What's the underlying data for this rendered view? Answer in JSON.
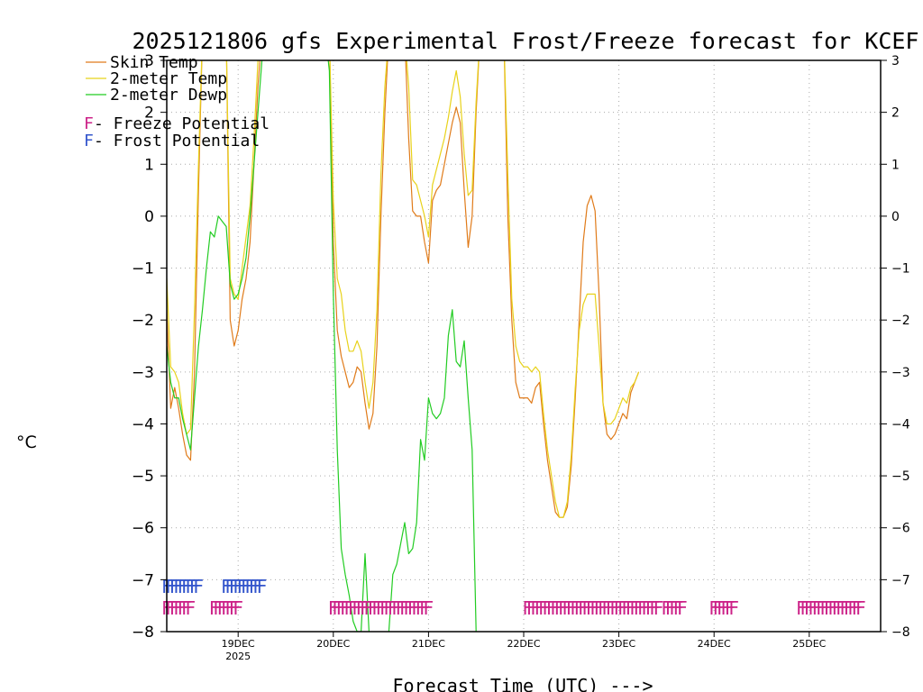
{
  "chart_data": {
    "type": "line",
    "title": "2025121806 gfs Experimental Frost/Freeze forecast for KCEF",
    "xlabel": "Forecast Time (UTC) --->",
    "ylabel": "°C",
    "ylim": [
      -8,
      3
    ],
    "yticks": [
      3,
      2,
      1,
      0,
      -1,
      -2,
      -3,
      -4,
      -5,
      -6,
      -7,
      -8
    ],
    "ytick_labels": [
      "3",
      "2",
      "1",
      "0",
      "−1",
      "−2",
      "−3",
      "−4",
      "−5",
      "−6",
      "−7",
      "−8"
    ],
    "xlim": [
      0,
      180
    ],
    "xunit": "forecast hours from 2025-12-18 06Z",
    "x_ticks": [
      {
        "hour": 18,
        "label": "19DEC",
        "sublabel": "2025"
      },
      {
        "hour": 42,
        "label": "20DEC",
        "sublabel": ""
      },
      {
        "hour": 66,
        "label": "21DEC",
        "sublabel": ""
      },
      {
        "hour": 90,
        "label": "22DEC",
        "sublabel": ""
      },
      {
        "hour": 114,
        "label": "23DEC",
        "sublabel": ""
      },
      {
        "hour": 138,
        "label": "24DEC",
        "sublabel": ""
      },
      {
        "hour": 162,
        "label": "25DEC",
        "sublabel": ""
      }
    ],
    "grid": true,
    "legend_position": "top-left",
    "legend": [
      {
        "label": "Skin Temp",
        "color": "#e07b1a"
      },
      {
        "label": "2-meter Temp",
        "color": "#e8d21a"
      },
      {
        "label": "2-meter Dewp",
        "color": "#22cc22"
      }
    ],
    "marker_legend": [
      {
        "symbol": "F",
        "label": " - Freeze Potential",
        "color": "#cc2288"
      },
      {
        "symbol": "F",
        "label": " - Frost Potential",
        "color": "#3355cc"
      }
    ],
    "series": [
      {
        "name": "Skin Temp",
        "color": "#e07b1a",
        "points": [
          [
            0,
            -1.8
          ],
          [
            1,
            -3.7
          ],
          [
            2,
            -3.3
          ],
          [
            3,
            -3.7
          ],
          [
            4,
            -4.2
          ],
          [
            5,
            -4.6
          ],
          [
            6,
            -4.7
          ],
          [
            7,
            -3.0
          ],
          [
            8,
            0.5
          ],
          [
            9,
            3.5
          ],
          [
            15,
            3.5
          ],
          [
            16,
            -2.0
          ],
          [
            17,
            -2.5
          ],
          [
            18,
            -2.2
          ],
          [
            19,
            -1.6
          ],
          [
            20,
            -1.2
          ],
          [
            21,
            -0.5
          ],
          [
            22,
            1.0
          ],
          [
            23,
            2.5
          ],
          [
            24,
            3.5
          ],
          [
            41,
            3.5
          ],
          [
            42,
            -0.5
          ],
          [
            43,
            -2.2
          ],
          [
            44,
            -2.7
          ],
          [
            45,
            -3.0
          ],
          [
            46,
            -3.3
          ],
          [
            47,
            -3.2
          ],
          [
            48,
            -2.9
          ],
          [
            49,
            -3.0
          ],
          [
            50,
            -3.6
          ],
          [
            51,
            -4.1
          ],
          [
            52,
            -3.8
          ],
          [
            53,
            -2.5
          ],
          [
            54,
            0.0
          ],
          [
            55,
            2.0
          ],
          [
            56,
            3.5
          ],
          [
            60,
            3.5
          ],
          [
            61,
            1.5
          ],
          [
            62,
            0.1
          ],
          [
            63,
            0.0
          ],
          [
            64,
            0.0
          ],
          [
            65,
            -0.5
          ],
          [
            66,
            -0.9
          ],
          [
            67,
            0.3
          ],
          [
            68,
            0.5
          ],
          [
            69,
            0.6
          ],
          [
            70,
            1.0
          ],
          [
            71,
            1.4
          ],
          [
            72,
            1.8
          ],
          [
            73,
            2.1
          ],
          [
            74,
            1.8
          ],
          [
            75,
            0.5
          ],
          [
            76,
            -0.6
          ],
          [
            77,
            0.0
          ],
          [
            78,
            2.0
          ],
          [
            79,
            3.5
          ],
          [
            85,
            3.5
          ],
          [
            86,
            0.0
          ],
          [
            87,
            -2.0
          ],
          [
            88,
            -3.2
          ],
          [
            89,
            -3.5
          ],
          [
            90,
            -3.5
          ],
          [
            91,
            -3.5
          ],
          [
            92,
            -3.6
          ],
          [
            93,
            -3.3
          ],
          [
            94,
            -3.2
          ],
          [
            95,
            -4.0
          ],
          [
            96,
            -4.7
          ],
          [
            97,
            -5.2
          ],
          [
            98,
            -5.7
          ],
          [
            99,
            -5.8
          ],
          [
            100,
            -5.8
          ],
          [
            101,
            -5.6
          ],
          [
            102,
            -4.8
          ],
          [
            103,
            -3.5
          ],
          [
            104,
            -2.0
          ],
          [
            105,
            -0.5
          ],
          [
            106,
            0.2
          ],
          [
            107,
            0.4
          ],
          [
            108,
            0.1
          ],
          [
            109,
            -1.5
          ],
          [
            110,
            -3.6
          ],
          [
            111,
            -4.2
          ],
          [
            112,
            -4.3
          ],
          [
            113,
            -4.2
          ],
          [
            114,
            -4.0
          ],
          [
            115,
            -3.8
          ],
          [
            116,
            -3.9
          ],
          [
            117,
            -3.4
          ],
          [
            118,
            -3.2
          ],
          [
            119,
            -3.0
          ]
        ]
      },
      {
        "name": "2-meter Temp",
        "color": "#e8d21a",
        "points": [
          [
            0,
            -1.2
          ],
          [
            1,
            -2.9
          ],
          [
            2,
            -3.0
          ],
          [
            3,
            -3.2
          ],
          [
            4,
            -3.8
          ],
          [
            5,
            -4.2
          ],
          [
            6,
            -4.1
          ],
          [
            7,
            -1.8
          ],
          [
            8,
            1.0
          ],
          [
            9,
            3.5
          ],
          [
            15,
            3.5
          ],
          [
            16,
            -1.2
          ],
          [
            17,
            -1.5
          ],
          [
            18,
            -1.6
          ],
          [
            19,
            -1.0
          ],
          [
            20,
            -0.4
          ],
          [
            21,
            0.2
          ],
          [
            22,
            1.5
          ],
          [
            23,
            3.0
          ],
          [
            24,
            3.5
          ],
          [
            41,
            3.5
          ],
          [
            42,
            0.3
          ],
          [
            43,
            -1.2
          ],
          [
            44,
            -1.5
          ],
          [
            45,
            -2.2
          ],
          [
            46,
            -2.6
          ],
          [
            47,
            -2.6
          ],
          [
            48,
            -2.4
          ],
          [
            49,
            -2.6
          ],
          [
            50,
            -3.2
          ],
          [
            51,
            -3.7
          ],
          [
            52,
            -3.2
          ],
          [
            53,
            -1.8
          ],
          [
            54,
            0.8
          ],
          [
            55,
            2.5
          ],
          [
            56,
            3.5
          ],
          [
            60,
            3.5
          ],
          [
            61,
            2.5
          ],
          [
            62,
            0.7
          ],
          [
            63,
            0.6
          ],
          [
            64,
            0.3
          ],
          [
            65,
            0.0
          ],
          [
            66,
            -0.4
          ],
          [
            67,
            0.6
          ],
          [
            68,
            0.9
          ],
          [
            69,
            1.2
          ],
          [
            70,
            1.5
          ],
          [
            71,
            1.9
          ],
          [
            72,
            2.4
          ],
          [
            73,
            2.8
          ],
          [
            74,
            2.3
          ],
          [
            75,
            1.2
          ],
          [
            76,
            0.4
          ],
          [
            77,
            0.5
          ],
          [
            78,
            2.2
          ],
          [
            79,
            3.5
          ],
          [
            85,
            3.5
          ],
          [
            86,
            0.8
          ],
          [
            87,
            -1.6
          ],
          [
            88,
            -2.5
          ],
          [
            89,
            -2.8
          ],
          [
            90,
            -2.9
          ],
          [
            91,
            -2.9
          ],
          [
            92,
            -3.0
          ],
          [
            93,
            -2.9
          ],
          [
            94,
            -3.0
          ],
          [
            95,
            -3.8
          ],
          [
            96,
            -4.5
          ],
          [
            97,
            -5.0
          ],
          [
            98,
            -5.5
          ],
          [
            99,
            -5.8
          ],
          [
            100,
            -5.8
          ],
          [
            101,
            -5.5
          ],
          [
            102,
            -4.6
          ],
          [
            103,
            -3.3
          ],
          [
            104,
            -2.2
          ],
          [
            105,
            -1.7
          ],
          [
            106,
            -1.5
          ],
          [
            107,
            -1.5
          ],
          [
            108,
            -1.5
          ],
          [
            109,
            -2.5
          ],
          [
            110,
            -3.6
          ],
          [
            111,
            -4.0
          ],
          [
            112,
            -4.0
          ],
          [
            113,
            -3.9
          ],
          [
            114,
            -3.7
          ],
          [
            115,
            -3.5
          ],
          [
            116,
            -3.6
          ],
          [
            117,
            -3.3
          ],
          [
            118,
            -3.2
          ],
          [
            119,
            -3.0
          ]
        ]
      },
      {
        "name": "2-meter Dewp",
        "color": "#22cc22",
        "points": [
          [
            0,
            -2.5
          ],
          [
            1,
            -3.2
          ],
          [
            2,
            -3.5
          ],
          [
            3,
            -3.5
          ],
          [
            4,
            -3.9
          ],
          [
            5,
            -4.2
          ],
          [
            6,
            -4.5
          ],
          [
            7,
            -3.5
          ],
          [
            8,
            -2.5
          ],
          [
            9,
            -1.8
          ],
          [
            10,
            -1.0
          ],
          [
            11,
            -0.3
          ],
          [
            12,
            -0.4
          ],
          [
            13,
            0.0
          ],
          [
            14,
            -0.1
          ],
          [
            15,
            -0.2
          ],
          [
            16,
            -1.3
          ],
          [
            17,
            -1.6
          ],
          [
            18,
            -1.5
          ],
          [
            19,
            -1.2
          ],
          [
            20,
            -0.8
          ],
          [
            21,
            0.0
          ],
          [
            22,
            1.0
          ],
          [
            23,
            2.0
          ],
          [
            24,
            3.0
          ],
          [
            25,
            3.5
          ],
          [
            40,
            3.5
          ],
          [
            41,
            2.8
          ],
          [
            42,
            -1.5
          ],
          [
            43,
            -4.5
          ],
          [
            44,
            -6.4
          ],
          [
            45,
            -6.9
          ],
          [
            46,
            -7.3
          ],
          [
            47,
            -7.8
          ],
          [
            48,
            -8.0
          ],
          [
            49,
            -8.0
          ],
          [
            50,
            -6.5
          ],
          [
            51,
            -8.0
          ],
          [
            56,
            -8.0
          ],
          [
            57,
            -6.9
          ],
          [
            58,
            -6.7
          ],
          [
            59,
            -6.3
          ],
          [
            60,
            -5.9
          ],
          [
            61,
            -6.5
          ],
          [
            62,
            -6.4
          ],
          [
            63,
            -5.9
          ],
          [
            64,
            -4.3
          ],
          [
            65,
            -4.7
          ],
          [
            66,
            -3.5
          ],
          [
            67,
            -3.8
          ],
          [
            68,
            -3.9
          ],
          [
            69,
            -3.8
          ],
          [
            70,
            -3.5
          ],
          [
            71,
            -2.3
          ],
          [
            72,
            -1.8
          ],
          [
            73,
            -2.8
          ],
          [
            74,
            -2.9
          ],
          [
            75,
            -2.4
          ],
          [
            76,
            -3.5
          ],
          [
            77,
            -4.5
          ],
          [
            78,
            -8.0
          ]
        ]
      }
    ],
    "freeze_markers": {
      "color": "#cc2288",
      "symbol": "F",
      "hours": [
        0,
        1,
        2,
        3,
        4,
        5,
        6,
        12,
        13,
        14,
        15,
        16,
        17,
        18,
        42,
        43,
        44,
        45,
        46,
        47,
        48,
        49,
        50,
        51,
        52,
        53,
        54,
        55,
        56,
        57,
        58,
        59,
        60,
        61,
        62,
        63,
        64,
        65,
        66,
        91,
        92,
        93,
        94,
        95,
        96,
        97,
        98,
        99,
        100,
        101,
        102,
        103,
        104,
        105,
        106,
        107,
        108,
        109,
        110,
        111,
        112,
        113,
        114,
        115,
        116,
        117,
        118,
        119,
        120,
        121,
        122,
        123,
        124,
        126,
        127,
        128,
        129,
        130,
        138,
        139,
        140,
        141,
        142,
        143,
        160,
        161,
        162,
        163,
        164,
        165,
        166,
        167,
        168,
        169,
        170,
        171,
        172,
        173,
        174,
        175
      ]
    },
    "frost_markers": {
      "color": "#3355cc",
      "symbol": "F",
      "hours": [
        0,
        1,
        2,
        3,
        4,
        5,
        6,
        7,
        8,
        15,
        16,
        17,
        18,
        19,
        20,
        21,
        22,
        23,
        24
      ]
    }
  }
}
